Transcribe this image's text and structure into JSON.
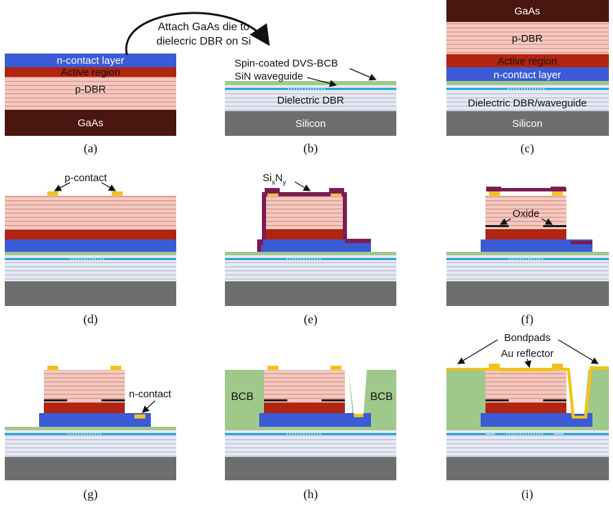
{
  "captions": {
    "a": "(a)",
    "b": "(b)",
    "c": "(c)",
    "d": "(d)",
    "e": "(e)",
    "f": "(f)",
    "g": "(g)",
    "h": "(h)",
    "i": "(i)"
  },
  "a": {
    "n_contact": "n-contact layer",
    "active": "Active region",
    "pdbr": "p-DBR",
    "gaas": "GaAs"
  },
  "process": {
    "attach_line1": "Attach GaAs die to",
    "attach_line2": "dielecric DBR on Si"
  },
  "b": {
    "bcb": "Spin-coated DVS-BCB",
    "sin": "SiN waveguide",
    "dbr": "Dielectric DBR",
    "silicon": "Silicon"
  },
  "c": {
    "gaas": "GaAs",
    "pdbr": "p-DBR",
    "active": "Active region",
    "n_contact": "n-contact layer",
    "dbr": "Dielectric DBR/waveguide",
    "silicon": "Silicon"
  },
  "d": {
    "pcontact": "p-contact"
  },
  "e": {
    "si": "Si",
    "x": "x",
    "n": "N",
    "y": "y"
  },
  "f": {
    "oxide": "Oxide"
  },
  "g": {
    "ncontact": "n-contact"
  },
  "h": {
    "bcb_left": "BCB",
    "bcb_right": "BCB"
  },
  "i": {
    "bondpads": "Bondpads",
    "au": "Au reflector"
  },
  "colors": {
    "gaas": "#4b1510",
    "pdbr_light": "#f3c9c0",
    "pdbr_line": "#d98e82",
    "active": "#b1240f",
    "ncontact": "#3b5bd6",
    "bcb": "#9fc98b",
    "waveguide": "#29a6e0",
    "dbr_light": "#e6e9f2",
    "dbr_line": "#b7bfd6",
    "silicon": "#6e6e6e",
    "sinx": "#7d1b52",
    "gold": "#f2c21b",
    "oxide": "#1a1a1a"
  }
}
